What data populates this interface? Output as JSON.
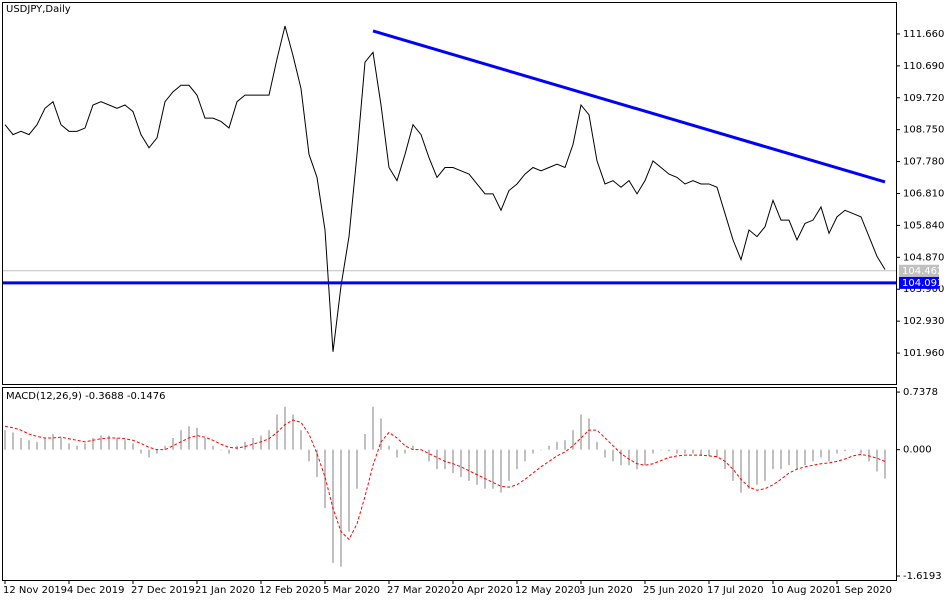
{
  "chart_data": [
    {
      "type": "line",
      "title": "USDJPY,Daily",
      "color": "#000000",
      "categories": [
        "12 Nov 2019",
        null,
        null,
        null,
        null,
        null,
        null,
        null,
        "4 Dec 2019",
        null,
        null,
        null,
        null,
        null,
        null,
        null,
        "27 Dec 2019",
        null,
        null,
        null,
        null,
        null,
        null,
        null,
        "21 Jan 2020",
        null,
        null,
        null,
        null,
        null,
        null,
        null,
        "12 Feb 2020",
        null,
        null,
        null,
        null,
        null,
        null,
        null,
        "5 Mar 2020",
        null,
        null,
        null,
        null,
        null,
        null,
        null,
        "27 Mar 2020",
        null,
        null,
        null,
        null,
        null,
        null,
        null,
        "20 Apr 2020",
        null,
        null,
        null,
        null,
        null,
        null,
        null,
        "12 May 2020",
        null,
        null,
        null,
        null,
        null,
        null,
        null,
        "3 Jun 2020",
        null,
        null,
        null,
        null,
        null,
        null,
        null,
        "25 Jun 2020",
        null,
        null,
        null,
        null,
        null,
        null,
        null,
        "17 Jul 2020",
        null,
        null,
        null,
        null,
        null,
        null,
        null,
        "10 Aug 2020",
        null,
        null,
        null,
        null,
        null,
        null,
        null,
        "1 Sep 2020",
        null,
        null,
        null,
        null,
        null,
        null
      ],
      "values": [
        108.9,
        108.6,
        108.7,
        108.6,
        108.9,
        109.4,
        109.6,
        108.9,
        108.7,
        108.7,
        108.8,
        109.5,
        109.6,
        109.5,
        109.4,
        109.5,
        109.3,
        108.6,
        108.2,
        108.5,
        109.6,
        109.9,
        110.1,
        110.1,
        109.8,
        109.1,
        109.1,
        109.0,
        108.8,
        109.6,
        109.8,
        109.8,
        109.8,
        109.8,
        110.9,
        111.9,
        111.0,
        110.0,
        108.0,
        107.3,
        105.7,
        102.0,
        104.0,
        105.5,
        108.0,
        110.8,
        111.1,
        109.5,
        107.6,
        107.2,
        108.0,
        108.9,
        108.6,
        107.9,
        107.3,
        107.6,
        107.6,
        107.5,
        107.4,
        107.1,
        106.8,
        106.8,
        106.3,
        106.9,
        107.1,
        107.4,
        107.6,
        107.5,
        107.6,
        107.7,
        107.6,
        108.3,
        109.5,
        109.2,
        107.8,
        107.1,
        107.2,
        107.0,
        107.2,
        106.8,
        107.2,
        107.8,
        107.6,
        107.4,
        107.3,
        107.1,
        107.2,
        107.1,
        107.1,
        107.0,
        106.2,
        105.4,
        104.8,
        105.7,
        105.5,
        105.8,
        106.6,
        106.0,
        106.0,
        105.4,
        105.9,
        106.0,
        106.4,
        105.6,
        106.1,
        106.3,
        106.2,
        106.1,
        105.5,
        104.9,
        104.5
      ],
      "ylim": [
        101.02,
        112.6
      ],
      "yticks": [
        {
          "value": 111.66,
          "label": "111.660"
        },
        {
          "value": 110.69,
          "label": "110.690"
        },
        {
          "value": 109.72,
          "label": "109.720"
        },
        {
          "value": 108.75,
          "label": "108.750"
        },
        {
          "value": 107.78,
          "label": "107.780"
        },
        {
          "value": 106.81,
          "label": "106.810"
        },
        {
          "value": 105.84,
          "label": "105.840"
        },
        {
          "value": 104.87,
          "label": "104.870"
        },
        {
          "value": 103.9,
          "label": "103.900"
        },
        {
          "value": 102.93,
          "label": "102.930"
        },
        {
          "value": 101.96,
          "label": "101.960"
        }
      ],
      "last_price": {
        "value": 104.462,
        "label": "104.462"
      },
      "hline": {
        "value": 104.093,
        "label": "104.093",
        "color": "#0000ff"
      },
      "trendline": {
        "color": "#0000ff",
        "x": [
          46,
          110
        ],
        "y": [
          111.75,
          107.16
        ]
      }
    },
    {
      "type": "macd",
      "title": "MACD(12,26,9) -0.3688 -0.1476",
      "histogram_color": "#c0c0c0",
      "signal_color": "#ff0000",
      "histogram": [
        0.25,
        0.22,
        0.15,
        0.12,
        0.1,
        0.15,
        0.2,
        0.15,
        0.08,
        0.05,
        0.08,
        0.15,
        0.18,
        0.18,
        0.15,
        0.12,
        0.08,
        -0.05,
        -0.1,
        -0.05,
        0.05,
        0.15,
        0.25,
        0.3,
        0.28,
        0.15,
        0.05,
        0.0,
        -0.05,
        0.05,
        0.1,
        0.15,
        0.18,
        0.25,
        0.45,
        0.55,
        0.45,
        0.25,
        -0.15,
        -0.35,
        -0.75,
        -1.45,
        -1.5,
        -1.05,
        -0.5,
        0.2,
        0.55,
        0.4,
        0.05,
        -0.1,
        -0.05,
        0.05,
        0.0,
        -0.15,
        -0.25,
        -0.25,
        -0.3,
        -0.35,
        -0.4,
        -0.45,
        -0.5,
        -0.5,
        -0.55,
        -0.4,
        -0.25,
        -0.15,
        -0.05,
        0.0,
        0.05,
        0.1,
        0.12,
        0.25,
        0.45,
        0.4,
        0.1,
        -0.1,
        -0.15,
        -0.2,
        -0.2,
        -0.25,
        -0.2,
        -0.05,
        0.0,
        -0.02,
        -0.05,
        -0.05,
        -0.05,
        -0.08,
        -0.08,
        -0.1,
        -0.25,
        -0.4,
        -0.55,
        -0.5,
        -0.45,
        -0.4,
        -0.25,
        -0.25,
        -0.2,
        -0.25,
        -0.2,
        -0.15,
        -0.1,
        -0.15,
        -0.05,
        -0.02,
        0.0,
        -0.05,
        -0.15,
        -0.28,
        -0.37
      ],
      "signal": [
        0.3,
        0.28,
        0.25,
        0.2,
        0.17,
        0.15,
        0.15,
        0.16,
        0.14,
        0.12,
        0.1,
        0.12,
        0.14,
        0.15,
        0.15,
        0.14,
        0.12,
        0.08,
        0.03,
        0.0,
        0.0,
        0.05,
        0.1,
        0.15,
        0.18,
        0.16,
        0.12,
        0.07,
        0.03,
        0.02,
        0.04,
        0.07,
        0.1,
        0.14,
        0.22,
        0.32,
        0.38,
        0.35,
        0.2,
        -0.05,
        -0.35,
        -0.75,
        -1.05,
        -1.15,
        -0.95,
        -0.6,
        -0.2,
        0.1,
        0.22,
        0.15,
        0.05,
        0.0,
        0.0,
        -0.05,
        -0.1,
        -0.15,
        -0.18,
        -0.22,
        -0.27,
        -0.32,
        -0.37,
        -0.42,
        -0.47,
        -0.48,
        -0.45,
        -0.38,
        -0.3,
        -0.22,
        -0.15,
        -0.08,
        -0.03,
        0.05,
        0.15,
        0.25,
        0.25,
        0.15,
        0.05,
        -0.05,
        -0.12,
        -0.18,
        -0.2,
        -0.18,
        -0.14,
        -0.1,
        -0.08,
        -0.07,
        -0.07,
        -0.07,
        -0.08,
        -0.09,
        -0.15,
        -0.25,
        -0.38,
        -0.48,
        -0.52,
        -0.5,
        -0.45,
        -0.38,
        -0.3,
        -0.25,
        -0.22,
        -0.2,
        -0.18,
        -0.17,
        -0.15,
        -0.12,
        -0.08,
        -0.06,
        -0.08,
        -0.11,
        -0.15
      ],
      "ylim": [
        -1.67,
        0.79
      ],
      "yticks": [
        0.7378,
        {
          "value": 0,
          "label": "0.000"
        },
        -1.6193
      ]
    }
  ]
}
